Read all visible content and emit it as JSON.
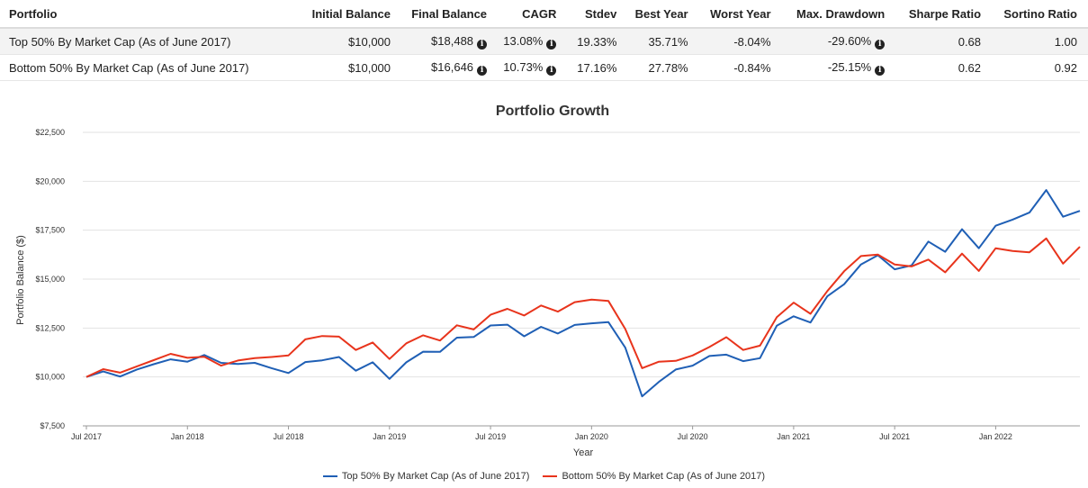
{
  "table": {
    "headers": [
      "Portfolio",
      "Initial Balance",
      "Final Balance",
      "CAGR",
      "Stdev",
      "Best Year",
      "Worst Year",
      "Max. Drawdown",
      "Sharpe Ratio",
      "Sortino Ratio"
    ],
    "rows": [
      {
        "portfolio": "Top 50% By Market Cap (As of June 2017)",
        "initial_balance": "$10,000",
        "final_balance": "$18,488",
        "cagr": "13.08%",
        "stdev": "19.33%",
        "best_year": "35.71%",
        "worst_year": "-8.04%",
        "max_drawdown": "-29.60%",
        "sharpe": "0.68",
        "sortino": "1.00"
      },
      {
        "portfolio": "Bottom 50% By Market Cap (As of June 2017)",
        "initial_balance": "$10,000",
        "final_balance": "$16,646",
        "cagr": "10.73%",
        "stdev": "17.16%",
        "best_year": "27.78%",
        "worst_year": "-0.84%",
        "max_drawdown": "-25.15%",
        "sharpe": "0.62",
        "sortino": "0.92"
      }
    ],
    "info_icon": "info-circle-icon"
  },
  "chart_data": {
    "type": "line",
    "title": "Portfolio Growth",
    "xlabel": "Year",
    "ylabel": "Portfolio Balance ($)",
    "ylim": [
      7500,
      22500
    ],
    "yticks": [
      7500,
      10000,
      12500,
      15000,
      17500,
      20000,
      22500
    ],
    "ytick_labels": [
      "$7,500",
      "$10,000",
      "$12,500",
      "$15,000",
      "$17,500",
      "$20,000",
      "$22,500"
    ],
    "xtick_labels": [
      "Jul 2017",
      "Jan 2018",
      "Jul 2018",
      "Jan 2019",
      "Jul 2019",
      "Jan 2020",
      "Jul 2020",
      "Jan 2021",
      "Jul 2021",
      "Jan 2022"
    ],
    "xtick_month_index": [
      0,
      6,
      12,
      18,
      24,
      30,
      36,
      42,
      48,
      54
    ],
    "n_points": 60,
    "grid": true,
    "legend_position": "bottom",
    "series": [
      {
        "name": "Top 50% By Market Cap (As of June 2017)",
        "color": "#1f5fb5",
        "values": [
          10000,
          10280,
          10020,
          10380,
          10650,
          10900,
          10780,
          11120,
          10720,
          10660,
          10720,
          10450,
          10200,
          10760,
          10850,
          11020,
          10320,
          10750,
          9900,
          10750,
          11290,
          11280,
          12010,
          12040,
          12630,
          12670,
          12080,
          12560,
          12220,
          12660,
          12740,
          12800,
          11500,
          9010,
          9750,
          10380,
          10580,
          11070,
          11140,
          10810,
          10960,
          12620,
          13100,
          12780,
          14120,
          14740,
          15750,
          16220,
          15500,
          15700,
          16920,
          16400,
          17550,
          16580,
          17730,
          18040,
          18400,
          19550,
          18190,
          18490
        ]
      },
      {
        "name": "Bottom 50% By Market Cap (As of June 2017)",
        "color": "#e8341c",
        "values": [
          10000,
          10400,
          10220,
          10540,
          10860,
          11180,
          10980,
          11030,
          10580,
          10840,
          10960,
          11020,
          11100,
          11920,
          12090,
          12060,
          11380,
          11760,
          10920,
          11720,
          12130,
          11860,
          12640,
          12430,
          13180,
          13480,
          13140,
          13650,
          13340,
          13820,
          13950,
          13880,
          12450,
          10450,
          10780,
          10820,
          11100,
          11530,
          12030,
          11380,
          11600,
          13060,
          13800,
          13230,
          14390,
          15400,
          16180,
          16250,
          15750,
          15650,
          16000,
          15350,
          16300,
          15420,
          16580,
          16440,
          16370,
          17080,
          15790,
          16650
        ]
      }
    ]
  }
}
